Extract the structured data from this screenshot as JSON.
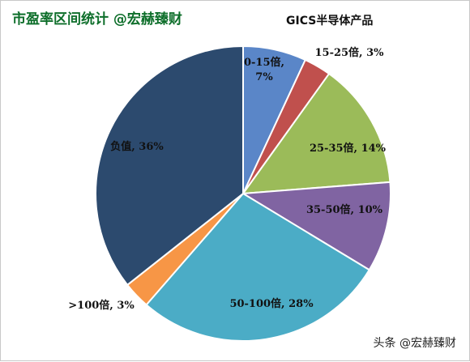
{
  "header": {
    "title": "市盈率区间统计 @宏赫臻财"
  },
  "watermark": "头条 @宏赫臻财",
  "chart_data": {
    "type": "pie",
    "title": "GICS半导体产品",
    "start_angle_deg": 0,
    "direction": "clockwise",
    "slices": [
      {
        "label": "0-15倍, 7%",
        "category": "0-15倍",
        "value": 7,
        "color": "#5a86c8",
        "label_lines": [
          "0-15倍,",
          "7%"
        ]
      },
      {
        "label": "15-25倍, 3%",
        "category": "15-25倍",
        "value": 3,
        "color": "#c0504d",
        "label_lines": [
          "15-25倍, 3%"
        ]
      },
      {
        "label": "25-35倍, 14%",
        "category": "25-35倍",
        "value": 14,
        "color": "#9bbb59",
        "label_lines": [
          "25-35倍, 14%"
        ]
      },
      {
        "label": "35-50倍, 10%",
        "category": "35-50倍",
        "value": 10,
        "color": "#8064a2",
        "label_lines": [
          "35-50倍, 10%"
        ]
      },
      {
        "label": "50-100倍, 28%",
        "category": "50-100倍",
        "value": 28,
        "color": "#4bacc6",
        "label_lines": [
          "50-100倍, 28%"
        ]
      },
      {
        "label": ">100倍, 3%",
        "category": ">100倍",
        "value": 3,
        "color": "#f79646",
        "label_lines": [
          ">100倍, 3%"
        ]
      },
      {
        "label": "负值, 36%",
        "category": "负值",
        "value": 36,
        "color": "#2c4a6e",
        "label_lines": [
          "负值, 36%"
        ]
      }
    ]
  }
}
